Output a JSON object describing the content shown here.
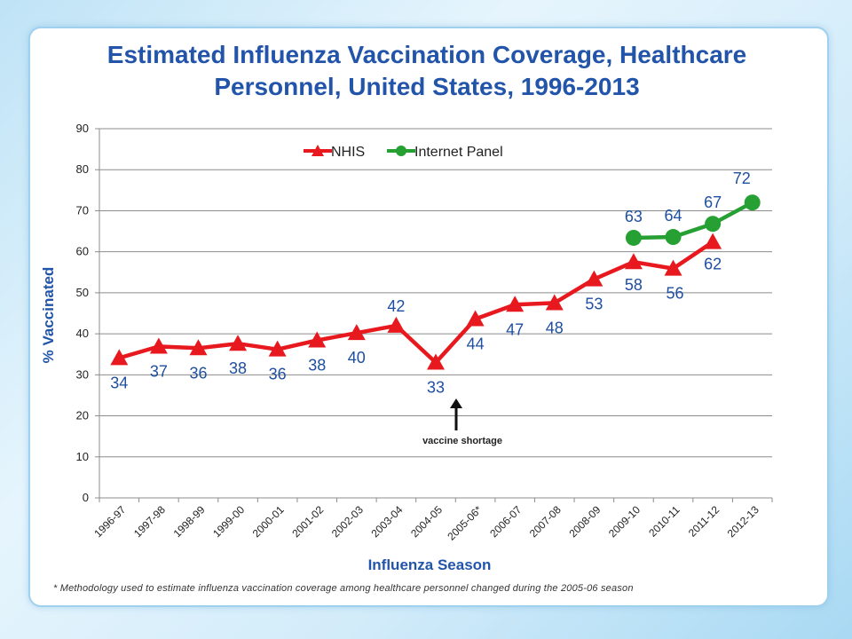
{
  "chart_data": {
    "type": "line",
    "title_line1": "Estimated Influenza Vaccination Coverage, Healthcare",
    "title_line2": "Personnel, United States, 1996-2013",
    "xlabel": "Influenza Season",
    "ylabel": "% Vaccinated",
    "ylim": [
      0,
      90
    ],
    "yticks": [
      0,
      10,
      20,
      30,
      40,
      50,
      60,
      70,
      80,
      90
    ],
    "grid": true,
    "legend_position": "top-center",
    "categories": [
      "1996-97",
      "1997-98",
      "1998-99",
      "1999-00",
      "2000-01",
      "2001-02",
      "2002-03",
      "2003-04",
      "2004-05",
      "2005-06*",
      "2006-07",
      "2007-08",
      "2008-09",
      "2009-10",
      "2010-11",
      "2011-12",
      "2012-13"
    ],
    "series": [
      {
        "name": "NHIS",
        "color": "#e8191e",
        "marker": "triangle",
        "values": [
          34.1,
          36.9,
          36.5,
          37.6,
          36.2,
          38.4,
          40.2,
          42.0,
          33.0,
          43.6,
          47.1,
          47.5,
          53.3,
          57.5,
          55.9,
          62.4,
          null
        ],
        "labels": [
          "34",
          "37",
          "36",
          "38",
          "36",
          "38",
          "40",
          "42",
          "33",
          "44",
          "47",
          "48",
          "53",
          "58",
          "56",
          "62",
          ""
        ]
      },
      {
        "name": "Internet Panel",
        "color": "#27a033",
        "marker": "circle",
        "values": [
          null,
          null,
          null,
          null,
          null,
          null,
          null,
          null,
          null,
          null,
          null,
          null,
          null,
          63.4,
          63.6,
          66.8,
          72.0
        ],
        "labels": [
          "",
          "",
          "",
          "",
          "",
          "",
          "",
          "",
          "",
          "",
          "",
          "",
          "",
          "63",
          "64",
          "67",
          "72"
        ]
      }
    ],
    "annotation": {
      "text": "vaccine shortage",
      "category": "2004-05"
    },
    "label_color": "#1f4fa0"
  },
  "footnote": "* Methodology used to estimate influenza vaccination coverage among healthcare personnel changed during the 2005-06 season"
}
